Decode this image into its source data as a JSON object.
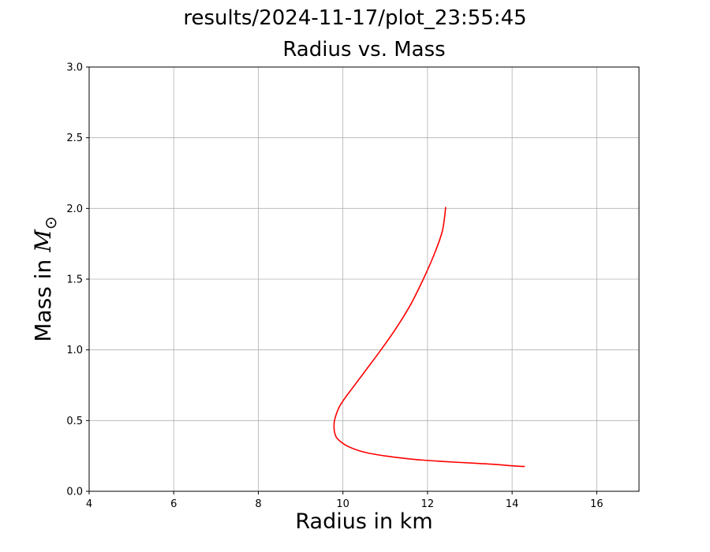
{
  "figure": {
    "suptitle": "results/2024-11-17/plot_23:55:45"
  },
  "chart_data": {
    "type": "line",
    "title": "Radius vs. Mass",
    "xlabel": "Radius in km",
    "ylabel_text": "Mass in ",
    "ylabel_symbol": "M",
    "ylabel_subscript": "⊙",
    "xlim": [
      4,
      17
    ],
    "ylim": [
      0,
      3.0
    ],
    "xticks": [
      4,
      6,
      8,
      10,
      12,
      14,
      16
    ],
    "xtick_labels": [
      "4",
      "6",
      "8",
      "10",
      "12",
      "14",
      "16"
    ],
    "yticks": [
      0,
      0.5,
      1.0,
      1.5,
      2.0,
      2.5,
      3.0
    ],
    "ytick_labels": [
      "0.0",
      "0.5",
      "1.0",
      "1.5",
      "2.0",
      "2.5",
      "3.0"
    ],
    "grid": true,
    "series": [
      {
        "color": "#ff0000",
        "x": [
          14.3,
          14.0,
          13.6,
          13.0,
          12.4,
          11.9,
          11.4,
          11.0,
          10.6,
          10.35,
          10.1,
          9.95,
          9.85,
          9.8,
          9.79,
          9.8,
          9.85,
          9.92,
          10.05,
          10.25,
          10.55,
          10.9,
          11.25,
          11.6,
          11.9,
          12.15,
          12.35,
          12.43
        ],
        "y": [
          0.175,
          0.18,
          0.19,
          0.2,
          0.21,
          0.22,
          0.235,
          0.25,
          0.27,
          0.29,
          0.32,
          0.35,
          0.38,
          0.42,
          0.46,
          0.5,
          0.55,
          0.6,
          0.66,
          0.74,
          0.86,
          1.0,
          1.15,
          1.32,
          1.5,
          1.67,
          1.84,
          2.01
        ]
      }
    ]
  }
}
